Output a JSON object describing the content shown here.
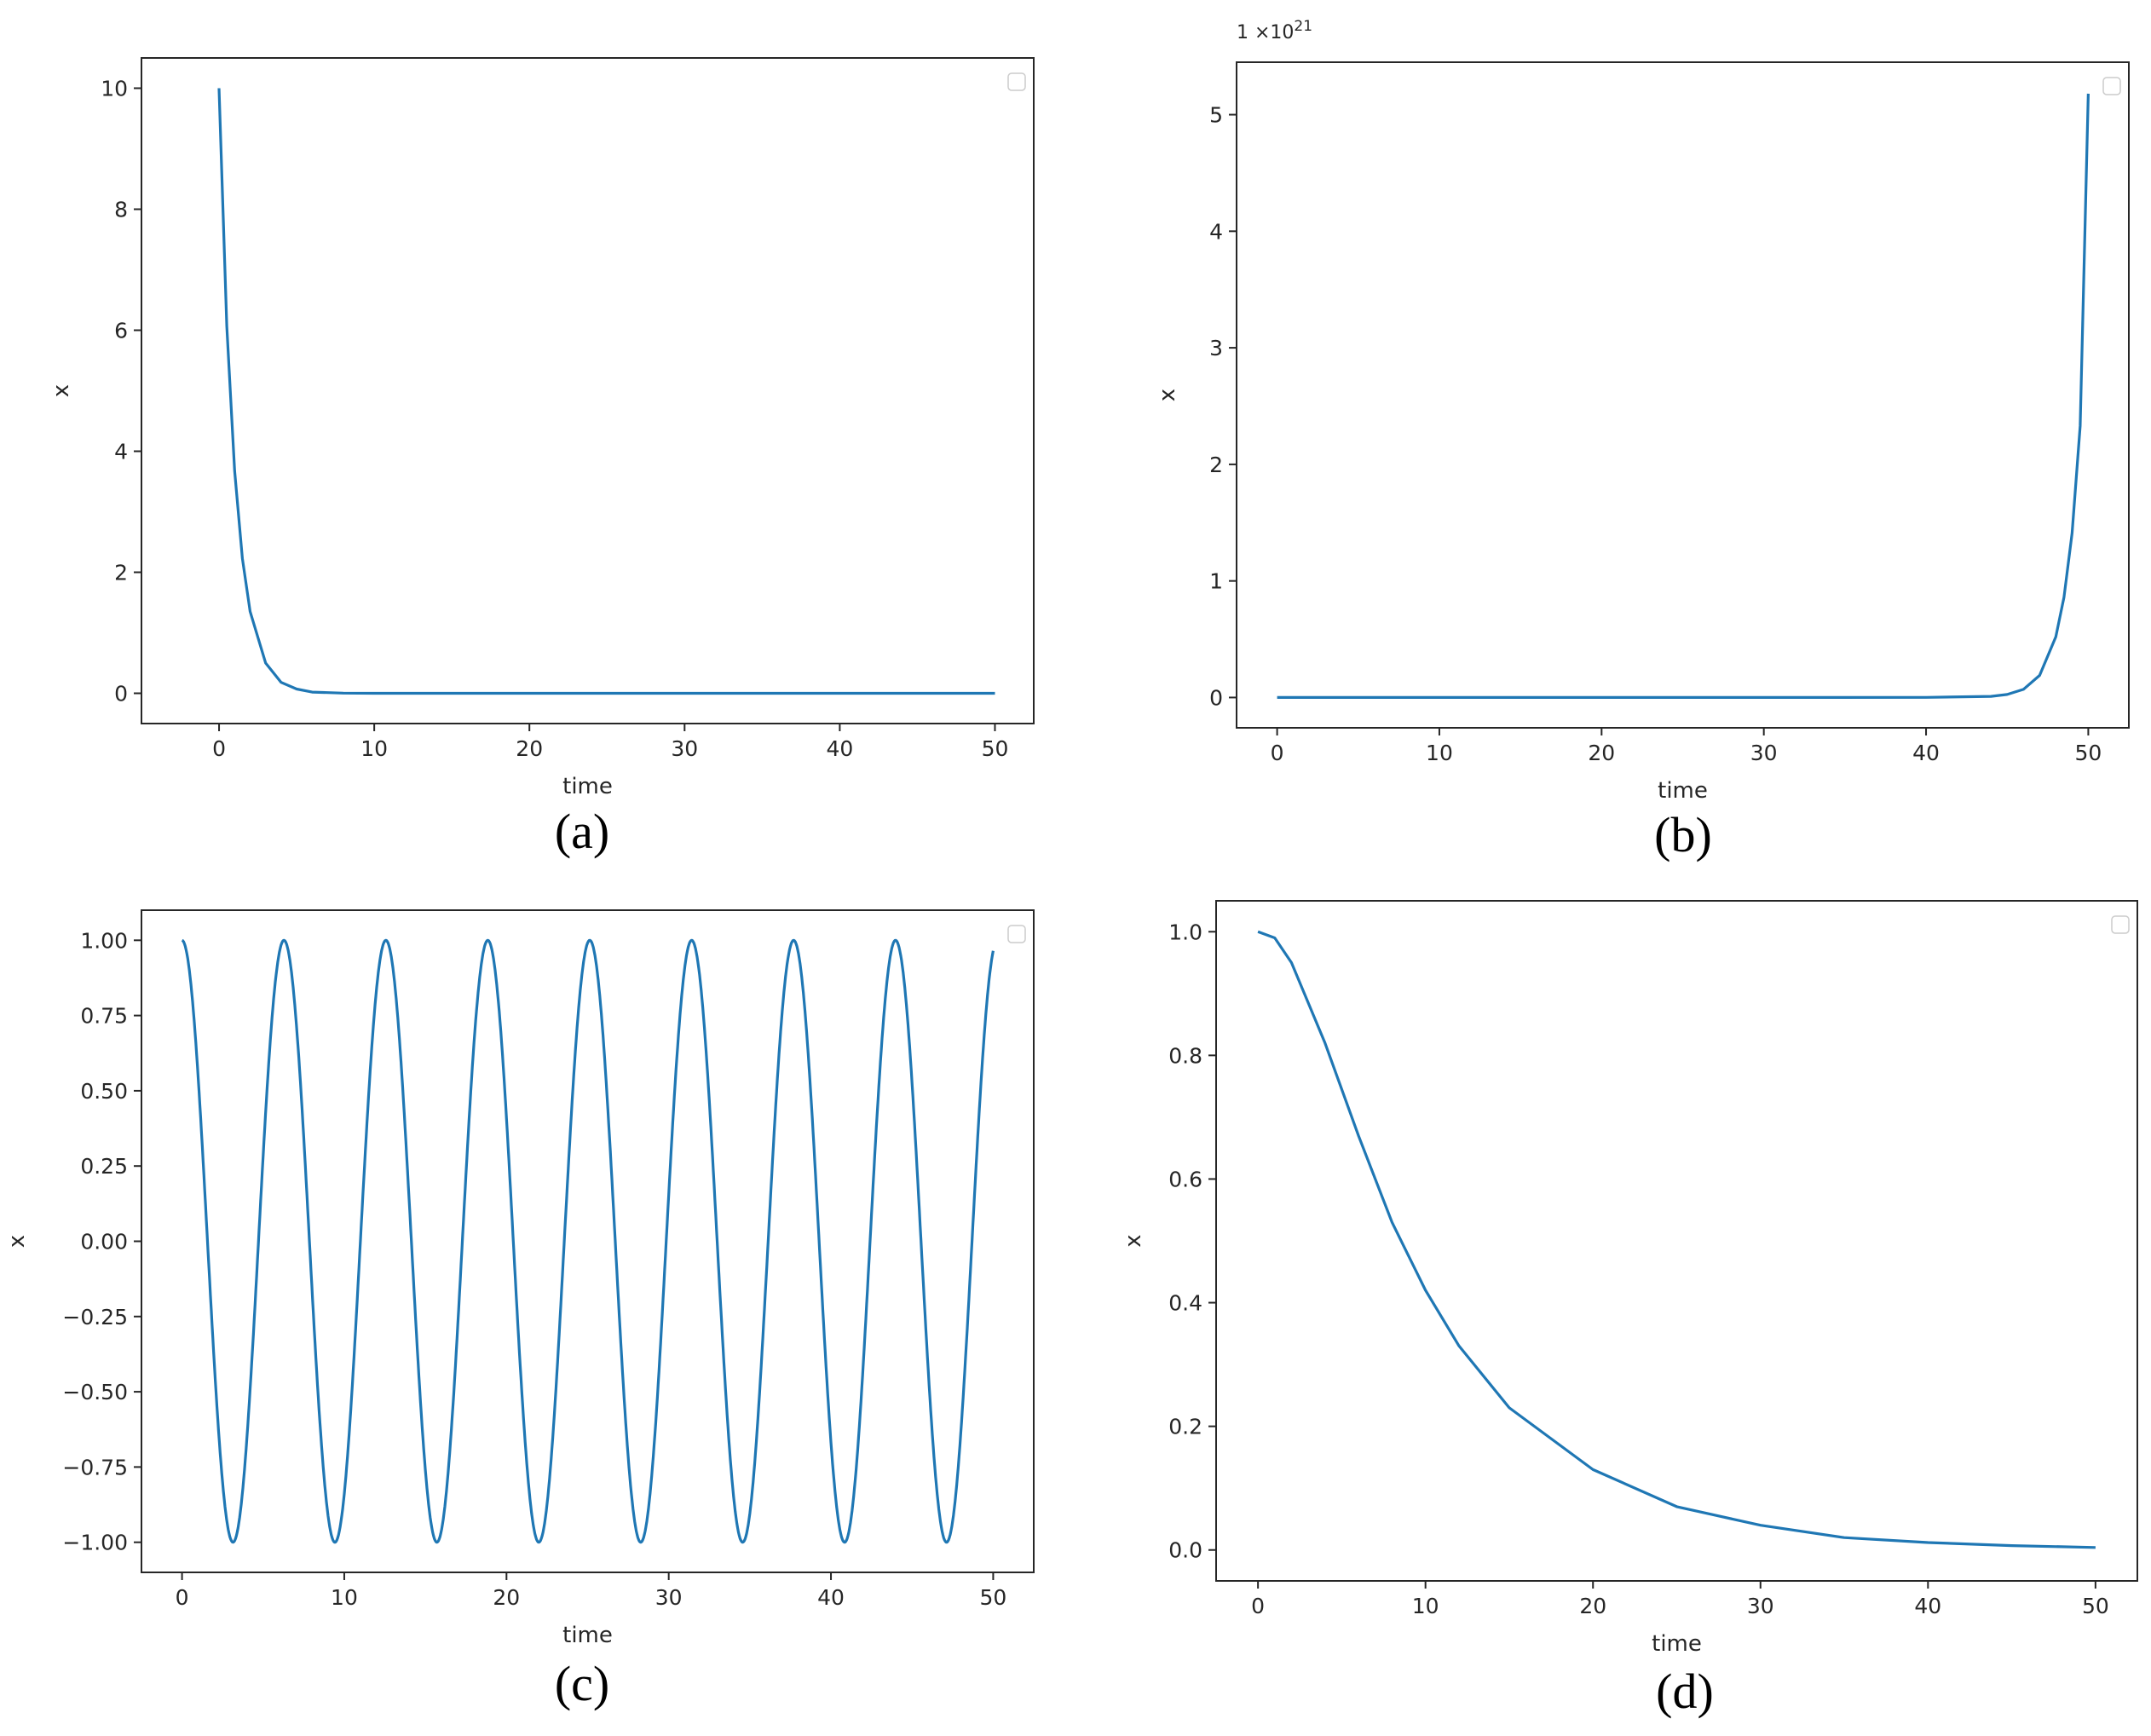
{
  "line_color": "#1f77b4",
  "chart_data": [
    {
      "type": "line",
      "caption": "(a)",
      "xlabel": "time",
      "ylabel": "x",
      "xlim": [
        -5,
        52.5
      ],
      "ylim": [
        -0.5,
        10.5
      ],
      "xticks": [
        "0",
        "10",
        "20",
        "30",
        "40",
        "50"
      ],
      "yticks": [
        "0",
        "2",
        "4",
        "6",
        "8",
        "10"
      ],
      "xtick_values": [
        0,
        10,
        20,
        30,
        40,
        50
      ],
      "ytick_values": [
        0,
        2,
        4,
        6,
        8,
        10
      ],
      "legend": "top-right (empty)",
      "grid": false,
      "series": [
        {
          "x": [
            0,
            0.5,
            1,
            1.5,
            2,
            3,
            4,
            5,
            6,
            8,
            10,
            20,
            30,
            40,
            50
          ],
          "y": [
            10,
            6.07,
            3.68,
            2.23,
            1.35,
            0.5,
            0.18,
            0.07,
            0.02,
            0.003,
            0.0,
            0.0,
            0.0,
            0.0,
            0.0
          ]
        }
      ]
    },
    {
      "type": "line",
      "caption": "(b)",
      "xlabel": "time",
      "ylabel": "x",
      "offset_text": "1 ×10",
      "offset_exp": "21",
      "xlim": [
        -2.5,
        52.5
      ],
      "ylim": [
        -0.26,
        5.45
      ],
      "xticks": [
        "0",
        "10",
        "20",
        "30",
        "40",
        "50"
      ],
      "yticks": [
        "0",
        "1",
        "2",
        "3",
        "4",
        "5"
      ],
      "xtick_values": [
        0,
        10,
        20,
        30,
        40,
        50
      ],
      "ytick_values": [
        0,
        1,
        2,
        3,
        4,
        5
      ],
      "legend": "top-right (empty)",
      "grid": false,
      "series": [
        {
          "x": [
            0,
            10,
            20,
            30,
            40,
            44,
            45,
            46,
            47,
            48,
            48.5,
            49,
            49.5,
            50
          ],
          "y": [
            0,
            0,
            0,
            0,
            0.001,
            0.0095,
            0.026,
            0.07,
            0.19,
            0.52,
            0.86,
            1.41,
            2.33,
            5.18
          ]
        }
      ]
    },
    {
      "type": "line",
      "caption": "(c)",
      "xlabel": "time",
      "ylabel": "x",
      "xlim": [
        -2.5,
        52.5
      ],
      "ylim": [
        -1.1,
        1.1
      ],
      "xticks": [
        "0",
        "10",
        "20",
        "30",
        "40",
        "50"
      ],
      "yticks": [
        "−1.00",
        "−0.75",
        "−0.50",
        "−0.25",
        "0.00",
        "0.25",
        "0.50",
        "0.75",
        "1.00"
      ],
      "xtick_values": [
        0,
        10,
        20,
        30,
        40,
        50
      ],
      "ytick_values": [
        -1,
        -0.75,
        -0.5,
        -0.25,
        0,
        0.25,
        0.5,
        0.75,
        1
      ],
      "legend": "top-right (empty)",
      "grid": false,
      "series": [
        {
          "x": [
            0,
            3.14,
            6.28,
            9.42,
            12.57,
            15.71,
            18.85,
            21.99,
            25.13,
            28.27,
            31.42,
            34.56,
            37.7,
            40.84,
            43.98,
            47.12,
            50
          ],
          "y": [
            1,
            -1,
            1,
            -1,
            1,
            -1,
            1,
            -1,
            1,
            -1,
            1,
            -1,
            1,
            -1,
            1,
            -1,
            0.96
          ]
        }
      ]
    },
    {
      "type": "line",
      "caption": "(d)",
      "xlabel": "time",
      "ylabel": "x",
      "xlim": [
        -2.5,
        52.5
      ],
      "ylim": [
        -0.05,
        1.05
      ],
      "xticks": [
        "0",
        "10",
        "20",
        "30",
        "40",
        "50"
      ],
      "yticks": [
        "0.0",
        "0.2",
        "0.4",
        "0.6",
        "0.8",
        "1.0"
      ],
      "xtick_values": [
        0,
        10,
        20,
        30,
        40,
        50
      ],
      "ytick_values": [
        0,
        0.2,
        0.4,
        0.6,
        0.8,
        1
      ],
      "legend": "top-right (empty)",
      "grid": false,
      "series": [
        {
          "x": [
            0,
            1,
            2,
            4,
            6,
            8,
            10,
            12,
            15,
            20,
            25,
            30,
            35,
            40,
            45,
            50
          ],
          "y": [
            1,
            0.99,
            0.95,
            0.82,
            0.67,
            0.53,
            0.42,
            0.33,
            0.23,
            0.13,
            0.07,
            0.04,
            0.02,
            0.012,
            0.007,
            0.004
          ]
        }
      ]
    }
  ]
}
